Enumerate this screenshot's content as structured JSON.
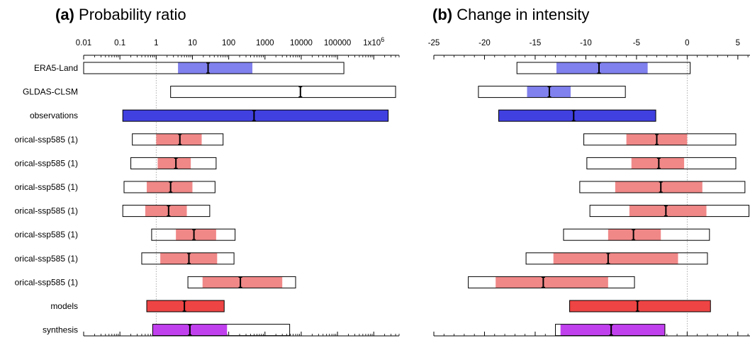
{
  "chart_data": [
    {
      "type": "range",
      "panel_letter": "(a)",
      "title": "Probability ratio",
      "xscale": "log",
      "xlim": [
        0.01,
        5000000
      ],
      "xticks": [
        0.01,
        0.1,
        1,
        10,
        100,
        1000,
        10000,
        100000,
        1000000
      ],
      "xtick_labels": [
        "0.01",
        "0.1",
        "1",
        "10",
        "100",
        "1000",
        "10000",
        "100000",
        "1x10"
      ],
      "xtick_label_superscripts": [
        "",
        "",
        "",
        "",
        "",
        "",
        "",
        "",
        "6"
      ],
      "reference_line": 1,
      "rows": [
        {
          "label": "ERA5-Land",
          "low": 0.01,
          "high": 150000,
          "nat_low": 4,
          "nat_high": 450,
          "best": 27,
          "color": "#8080ee",
          "fill_full": false
        },
        {
          "label": "GLDAS-CLSM",
          "low": 2.5,
          "high": 4000000,
          "nat_low": null,
          "nat_high": null,
          "best": 9500,
          "color": "#8080ee",
          "fill_full": false
        },
        {
          "label": "observations",
          "low": 0.12,
          "high": 2500000,
          "nat_low": null,
          "nat_high": null,
          "best": 500,
          "color": "#4040e0",
          "fill_full": true
        },
        {
          "label": "orical-ssp585 (1)",
          "low": 0.22,
          "high": 70,
          "nat_low": 1,
          "nat_high": 18,
          "best": 4.5,
          "color": "#f08888",
          "fill_full": false
        },
        {
          "label": "orical-ssp585 (1)",
          "low": 0.2,
          "high": 45,
          "nat_low": 1.1,
          "nat_high": 9,
          "best": 3.5,
          "color": "#f08888",
          "fill_full": false
        },
        {
          "label": "orical-ssp585 (1)",
          "low": 0.13,
          "high": 42,
          "nat_low": 0.55,
          "nat_high": 10,
          "best": 2.5,
          "color": "#f08888",
          "fill_full": false
        },
        {
          "label": "orical-ssp585 (1)",
          "low": 0.12,
          "high": 30,
          "nat_low": 0.5,
          "nat_high": 7,
          "best": 2.2,
          "color": "#f08888",
          "fill_full": false
        },
        {
          "label": "orical-ssp585 (1)",
          "low": 0.75,
          "high": 150,
          "nat_low": 3.5,
          "nat_high": 45,
          "best": 11,
          "color": "#f08888",
          "fill_full": false
        },
        {
          "label": "orical-ssp585 (1)",
          "low": 0.4,
          "high": 140,
          "nat_low": 1.3,
          "nat_high": 48,
          "best": 8,
          "color": "#f08888",
          "fill_full": false
        },
        {
          "label": "orical-ssp585 (1)",
          "low": 7.5,
          "high": 7000,
          "nat_low": 19,
          "nat_high": 3000,
          "best": 210,
          "color": "#f08888",
          "fill_full": false
        },
        {
          "label": "models",
          "low": 0.55,
          "high": 75,
          "nat_low": null,
          "nat_high": null,
          "best": 6,
          "color": "#ee4444",
          "fill_full": true
        },
        {
          "label": "synthesis",
          "low": 0.8,
          "high": 4800,
          "nat_low": 0.8,
          "nat_high": 90,
          "best": 8.5,
          "color": "#c040ee",
          "fill_full": false
        }
      ]
    },
    {
      "type": "range",
      "panel_letter": "(b)",
      "title": "Change in intensity",
      "xscale": "linear",
      "xlim": [
        -25,
        6.2
      ],
      "xticks": [
        -25,
        -20,
        -15,
        -10,
        -5,
        0,
        5
      ],
      "xtick_labels": [
        "-25",
        "-20",
        "-15",
        "-10",
        "-5",
        "0",
        "5"
      ],
      "reference_line": 0,
      "rows": [
        {
          "label": "ERA5-Land",
          "low": -16.8,
          "high": 0.3,
          "nat_low": -12.9,
          "nat_high": -3.9,
          "best": -8.7,
          "color": "#8080ee",
          "fill_full": false
        },
        {
          "label": "GLDAS-CLSM",
          "low": -20.6,
          "high": -6.1,
          "nat_low": -15.8,
          "nat_high": -11.5,
          "best": -13.6,
          "color": "#8080ee",
          "fill_full": false
        },
        {
          "label": "observations",
          "low": -18.6,
          "high": -3.1,
          "nat_low": null,
          "nat_high": null,
          "best": -11.2,
          "color": "#4040e0",
          "fill_full": true
        },
        {
          "label": "orical-ssp585 (1)",
          "low": -10.2,
          "high": 4.8,
          "nat_low": -6,
          "nat_high": 0,
          "best": -3,
          "color": "#f08888",
          "fill_full": false
        },
        {
          "label": "orical-ssp585 (1)",
          "low": -9.9,
          "high": 4.8,
          "nat_low": -5.5,
          "nat_high": -0.3,
          "best": -2.8,
          "color": "#f08888",
          "fill_full": false
        },
        {
          "label": "orical-ssp585 (1)",
          "low": -10.6,
          "high": 5.7,
          "nat_low": -7.1,
          "nat_high": 1.5,
          "best": -2.6,
          "color": "#f08888",
          "fill_full": false
        },
        {
          "label": "orical-ssp585 (1)",
          "low": -9.6,
          "high": 6.1,
          "nat_low": -5.7,
          "nat_high": 1.9,
          "best": -2.1,
          "color": "#f08888",
          "fill_full": false
        },
        {
          "label": "orical-ssp585 (1)",
          "low": -12.2,
          "high": 2.2,
          "nat_low": -7.8,
          "nat_high": -2.6,
          "best": -5.3,
          "color": "#f08888",
          "fill_full": false
        },
        {
          "label": "orical-ssp585 (1)",
          "low": -15.9,
          "high": 2,
          "nat_low": -13.2,
          "nat_high": -0.9,
          "best": -7.8,
          "color": "#f08888",
          "fill_full": false
        },
        {
          "label": "orical-ssp585 (1)",
          "low": -21.6,
          "high": -5.2,
          "nat_low": -18.9,
          "nat_high": -7.8,
          "best": -14.2,
          "color": "#f08888",
          "fill_full": false
        },
        {
          "label": "models",
          "low": -11.6,
          "high": 2.3,
          "nat_low": null,
          "nat_high": null,
          "best": -4.9,
          "color": "#ee4444",
          "fill_full": true
        },
        {
          "label": "synthesis",
          "low": -13,
          "high": -2.2,
          "nat_low": -12.5,
          "nat_high": -2.2,
          "best": -7.5,
          "color": "#c040ee",
          "fill_full": false
        }
      ]
    }
  ]
}
